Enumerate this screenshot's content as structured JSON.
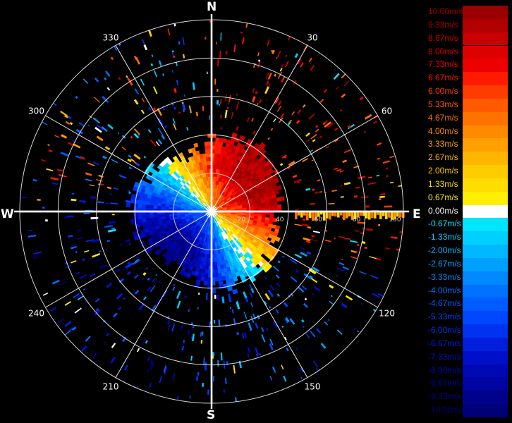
{
  "chart_data": {
    "type": "polar-ppi",
    "compass": {
      "north": "N",
      "east": "E",
      "south": "S",
      "west": "W"
    },
    "azimuth_labels": [
      "30",
      "60",
      "120",
      "150",
      "210",
      "240",
      "300",
      "330"
    ],
    "range_labels": [
      "20",
      "40",
      "60",
      "80",
      "100"
    ],
    "range_rings_count": 5,
    "legend": {
      "levels": [
        {
          "label": "10.00m/s",
          "color": "#9a0000"
        },
        {
          "label": "9.33m/s",
          "color": "#b00000"
        },
        {
          "label": "8.67m/s",
          "color": "#c80000"
        },
        {
          "label": "8.00m/s",
          "color": "#dc0000"
        },
        {
          "label": "7.33m/s",
          "color": "#ee0000"
        },
        {
          "label": "6.67m/s",
          "color": "#ff1a00"
        },
        {
          "label": "6.00m/s",
          "color": "#ff3c00"
        },
        {
          "label": "5.33m/s",
          "color": "#ff5a00"
        },
        {
          "label": "4.67m/s",
          "color": "#ff7200"
        },
        {
          "label": "4.00m/s",
          "color": "#ff8a00"
        },
        {
          "label": "3.33m/s",
          "color": "#ffa000"
        },
        {
          "label": "2.67m/s",
          "color": "#ffb600"
        },
        {
          "label": "2.00m/s",
          "color": "#ffcc00"
        },
        {
          "label": "1.33m/s",
          "color": "#ffdd00"
        },
        {
          "label": "0.67m/s",
          "color": "#ffee00"
        },
        {
          "label": "0.00m/s",
          "color": "#ffffff"
        },
        {
          "label": "-0.67m/s",
          "color": "#00e6ff"
        },
        {
          "label": "-1.33m/s",
          "color": "#00d0ff"
        },
        {
          "label": "-2.00m/s",
          "color": "#00b8ff"
        },
        {
          "label": "-2.67m/s",
          "color": "#00a0ff"
        },
        {
          "label": "-3.33m/s",
          "color": "#0088ff"
        },
        {
          "label": "-4.00m/s",
          "color": "#0072ff"
        },
        {
          "label": "-4.67m/s",
          "color": "#005cff"
        },
        {
          "label": "-5.33m/s",
          "color": "#0046ff"
        },
        {
          "label": "-6.00m/s",
          "color": "#0032f0"
        },
        {
          "label": "-6.67m/s",
          "color": "#001edc"
        },
        {
          "label": "-7.33m/s",
          "color": "#0010c8"
        },
        {
          "label": "-8.00m/s",
          "color": "#0008b4"
        },
        {
          "label": "-8.67m/s",
          "color": "#0004a0"
        },
        {
          "label": "-9.33m/s",
          "color": "#00028c"
        },
        {
          "label": "-10.00m/s",
          "color": "#000078"
        }
      ]
    }
  }
}
